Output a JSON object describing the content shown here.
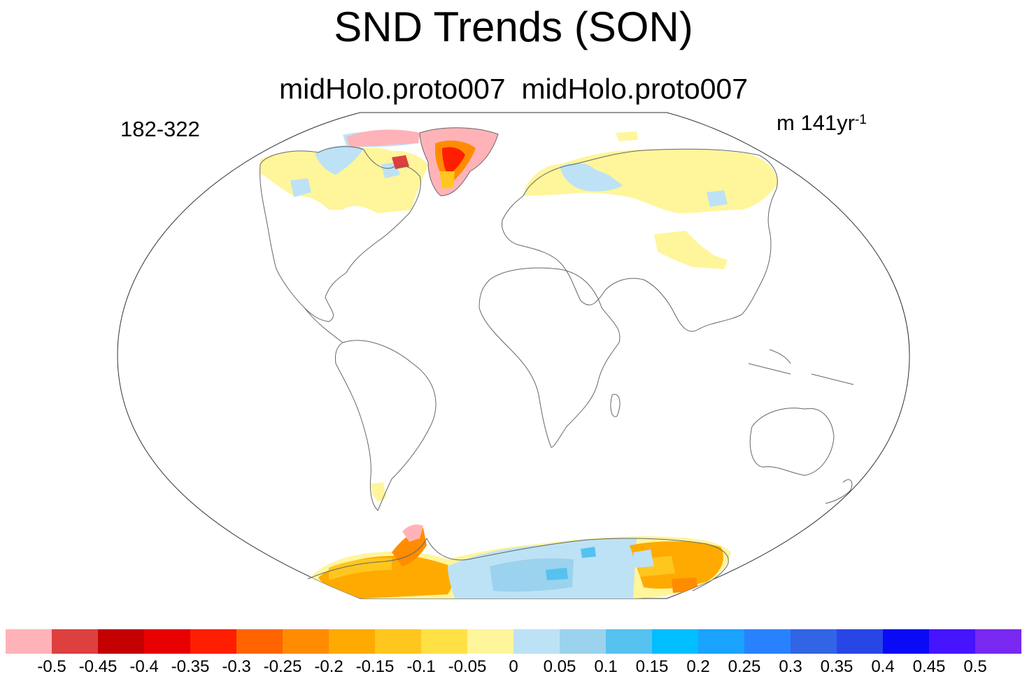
{
  "title": "SND Trends (SON)",
  "subtitle": "midHolo.proto007  midHolo.proto007",
  "left_label": "182-322",
  "units": {
    "base": "m 141yr",
    "exponent": "-1"
  },
  "colorbar": {
    "colors": [
      "#ffb3b8",
      "#de4040",
      "#c40000",
      "#e80000",
      "#ff1e00",
      "#ff6400",
      "#ff8c00",
      "#ffaa00",
      "#ffc61e",
      "#ffe146",
      "#fff59b",
      "#bde2f5",
      "#9bd2ee",
      "#55c2f0",
      "#00beff",
      "#1aa2ff",
      "#2882ff",
      "#3264e6",
      "#2846e6",
      "#0a0af5",
      "#4614ff",
      "#7828f0"
    ],
    "labels": [
      "-0.5",
      "-0.45",
      "-0.4",
      "-0.35",
      "-0.3",
      "-0.25",
      "-0.2",
      "-0.15",
      "-0.1",
      "-0.05",
      "0",
      "0.05",
      "0.1",
      "0.15",
      "0.2",
      "0.25",
      "0.3",
      "0.35",
      "0.4",
      "0.45",
      "0.5"
    ]
  }
}
